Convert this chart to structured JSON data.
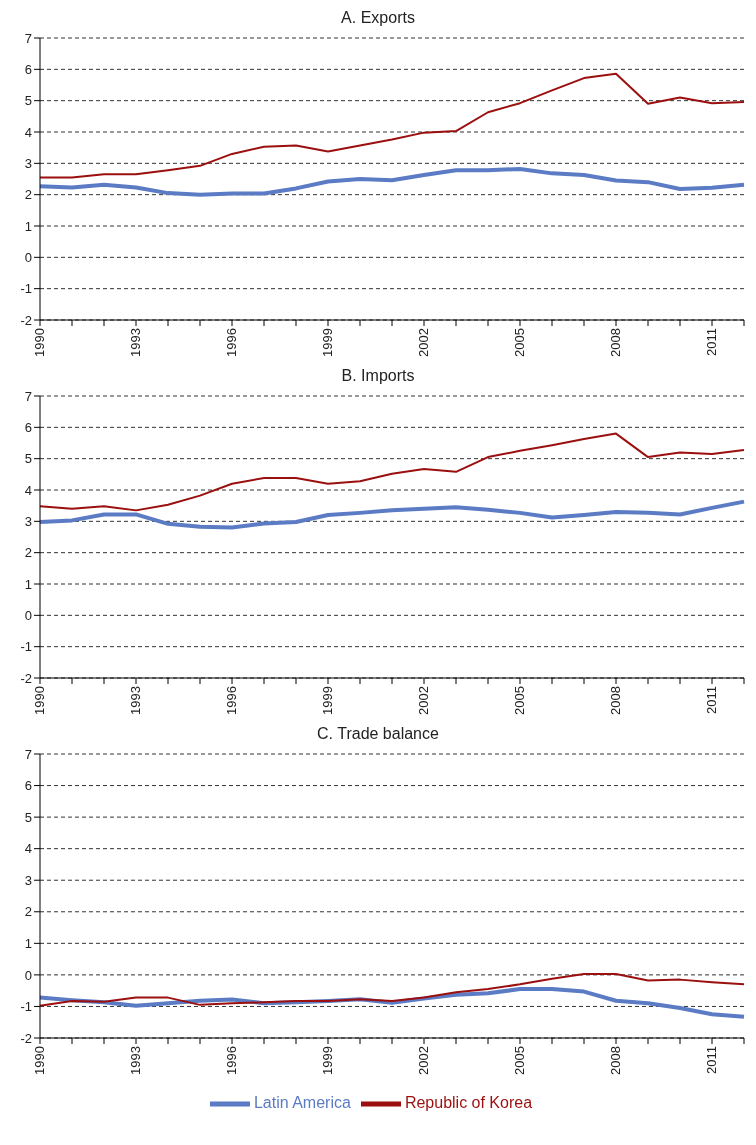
{
  "chart_data": [
    {
      "type": "line",
      "title": "A. Exports",
      "categories": [
        "1990",
        null,
        null,
        "1993",
        null,
        null,
        "1996",
        null,
        null,
        "1999",
        null,
        null,
        "2002",
        null,
        null,
        "2005",
        null,
        null,
        "2008",
        null,
        null,
        "2011",
        null
      ],
      "series": [
        {
          "color": "#5b7bc4",
          "values": [
            2.27,
            2.23,
            2.32,
            2.23,
            2.05,
            2.0,
            2.04,
            2.04,
            2.2,
            2.42,
            2.5,
            2.46,
            2.63,
            2.78,
            2.78,
            2.82,
            2.68,
            2.63,
            2.45,
            2.4,
            2.18,
            2.22,
            2.32
          ]
        },
        {
          "color": "#9b0f0f",
          "values": [
            2.55,
            2.55,
            2.65,
            2.65,
            2.78,
            2.92,
            3.3,
            3.53,
            3.57,
            3.38,
            3.57,
            3.76,
            3.98,
            4.03,
            4.63,
            4.92,
            5.33,
            5.72,
            5.86,
            4.9,
            5.1,
            4.92,
            4.96
          ]
        }
      ],
      "ylim": [
        -2,
        7
      ],
      "yticks": [
        -2,
        -1,
        0,
        1,
        2,
        3,
        4,
        5,
        6,
        7
      ],
      "grid": "y",
      "legend": false
    },
    {
      "type": "line",
      "title": "B. Imports",
      "categories": [
        "1990",
        null,
        null,
        "1993",
        null,
        null,
        "1996",
        null,
        null,
        "1999",
        null,
        null,
        "2002",
        null,
        null,
        "2005",
        null,
        null,
        "2008",
        null,
        null,
        "2011",
        null
      ],
      "series": [
        {
          "color": "#5b7bc4",
          "values": [
            2.98,
            3.03,
            3.22,
            3.22,
            2.92,
            2.83,
            2.8,
            2.93,
            2.98,
            3.2,
            3.27,
            3.35,
            3.4,
            3.45,
            3.37,
            3.27,
            3.12,
            3.2,
            3.3,
            3.27,
            3.22,
            3.43,
            3.63
          ]
        },
        {
          "color": "#9b0f0f",
          "values": [
            3.48,
            3.4,
            3.48,
            3.35,
            3.53,
            3.82,
            4.2,
            4.38,
            4.38,
            4.2,
            4.28,
            4.52,
            4.67,
            4.58,
            5.05,
            5.25,
            5.43,
            5.63,
            5.8,
            5.05,
            5.2,
            5.15,
            5.28
          ]
        }
      ],
      "ylim": [
        -2,
        7
      ],
      "yticks": [
        -2,
        -1,
        0,
        1,
        2,
        3,
        4,
        5,
        6,
        7
      ],
      "grid": "y",
      "legend": false
    },
    {
      "type": "line",
      "title": "C. Trade balance",
      "categories": [
        "1990",
        null,
        null,
        "1993",
        null,
        null,
        "1996",
        null,
        null,
        "1999",
        null,
        null,
        "2002",
        null,
        null,
        "2005",
        null,
        null,
        "2008",
        null,
        null,
        "2011",
        null
      ],
      "series": [
        {
          "name": "Latin America",
          "color": "#5b7bc4",
          "values": [
            -0.72,
            -0.8,
            -0.87,
            -0.98,
            -0.9,
            -0.82,
            -0.78,
            -0.9,
            -0.87,
            -0.83,
            -0.77,
            -0.88,
            -0.75,
            -0.63,
            -0.58,
            -0.45,
            -0.45,
            -0.53,
            -0.82,
            -0.9,
            -1.05,
            -1.25,
            -1.33
          ]
        },
        {
          "name": "Republic of Korea",
          "color": "#9b0f0f",
          "values": [
            -0.98,
            -0.83,
            -0.85,
            -0.72,
            -0.72,
            -0.95,
            -0.9,
            -0.87,
            -0.83,
            -0.83,
            -0.77,
            -0.83,
            -0.72,
            -0.55,
            -0.45,
            -0.3,
            -0.12,
            0.03,
            0.03,
            -0.18,
            -0.15,
            -0.23,
            -0.3
          ]
        }
      ],
      "ylim": [
        -2,
        7
      ],
      "yticks": [
        -2,
        -1,
        0,
        1,
        2,
        3,
        4,
        5,
        6,
        7
      ],
      "grid": "y",
      "legend": "bottom"
    }
  ]
}
